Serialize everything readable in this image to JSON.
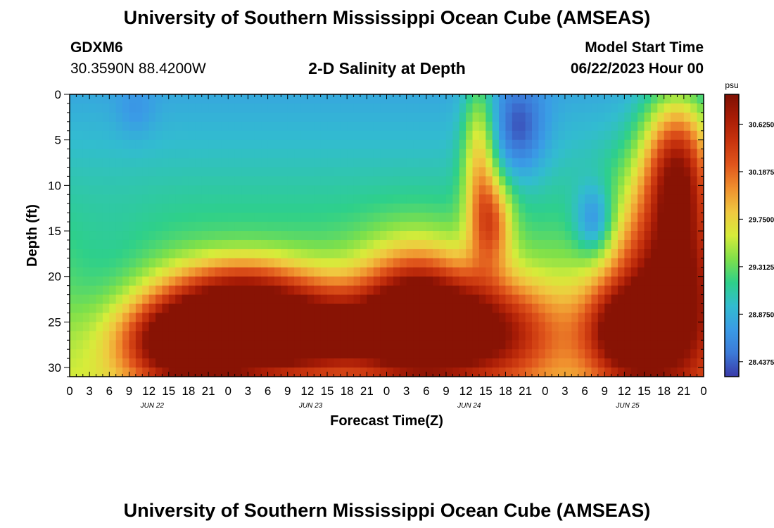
{
  "titles": {
    "main": "University of Southern Mississippi Ocean Cube (AMSEAS)",
    "footer": "University of Southern Mississippi Ocean Cube (AMSEAS)"
  },
  "header": {
    "station": "GDXM6",
    "coords": "30.3590N  88.4200W",
    "subtitle": "2-D Salinity at Depth",
    "start_label": "Model Start Time",
    "start_value": "06/22/2023 Hour 00"
  },
  "chart_data": {
    "type": "heatmap",
    "title": "2-D Salinity at Depth",
    "xlabel": "Forecast Time(Z)",
    "ylabel": "Depth (ft)",
    "x_tick_labels": [
      "0",
      "3",
      "6",
      "9",
      "12",
      "15",
      "18",
      "21",
      "0",
      "3",
      "6",
      "9",
      "12",
      "15",
      "18",
      "21",
      "0",
      "3",
      "6",
      "9",
      "12",
      "15",
      "18",
      "21",
      "0",
      "3",
      "6",
      "9",
      "12",
      "15",
      "18",
      "21",
      "0"
    ],
    "day_labels": [
      "JUN 22",
      "JUN 23",
      "JUN 24",
      "JUN 25"
    ],
    "y_ticks": [
      0,
      5,
      10,
      15,
      20,
      25,
      30
    ],
    "xlim_hours": [
      0,
      96
    ],
    "ylim_ft": [
      0,
      31
    ],
    "colorbar": {
      "unit": "psu",
      "ticks": [
        "30.6250",
        "30.1875",
        "29.7500",
        "29.3125",
        "28.8750",
        "28.4375"
      ],
      "range": [
        28.3,
        30.9
      ]
    },
    "colors": [
      "#3a3aa8",
      "#3c7ad8",
      "#3a9be6",
      "#32bcd0",
      "#2ed08a",
      "#7fe04a",
      "#d6ec3a",
      "#f0c840",
      "#f0902e",
      "#e0561c",
      "#c8340e",
      "#a81c06",
      "#7e1004"
    ]
  }
}
